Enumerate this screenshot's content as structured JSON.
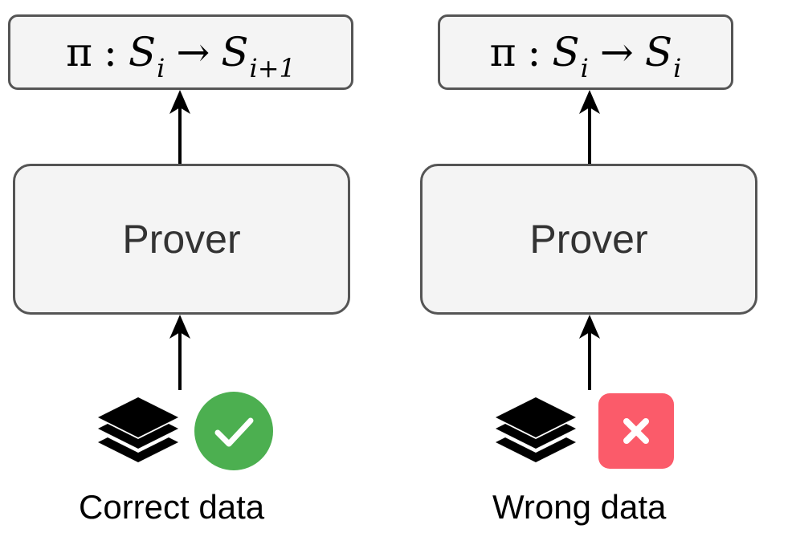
{
  "colors": {
    "box_fill": "#f4f4f4",
    "box_border": "#555555",
    "arrow": "#000000",
    "correct_badge": "#4caf50",
    "wrong_badge": "#fb5b6a"
  },
  "panels": [
    {
      "output": {
        "pi": "π",
        "colon": ":",
        "S": "S",
        "sub_i": "i",
        "arrow": "→",
        "S2": "S",
        "sub2": "i+1"
      },
      "prover_label": "Prover",
      "data_icon": "stack-layers-icon",
      "status_icon": "check-circle-icon",
      "caption": "Correct data"
    },
    {
      "output": {
        "pi": "π",
        "colon": ":",
        "S": "S",
        "sub_i": "i",
        "arrow": "→",
        "S2": "S",
        "sub2": "i"
      },
      "prover_label": "Prover",
      "data_icon": "stack-layers-icon",
      "status_icon": "x-square-icon",
      "caption": "Wrong data"
    }
  ]
}
